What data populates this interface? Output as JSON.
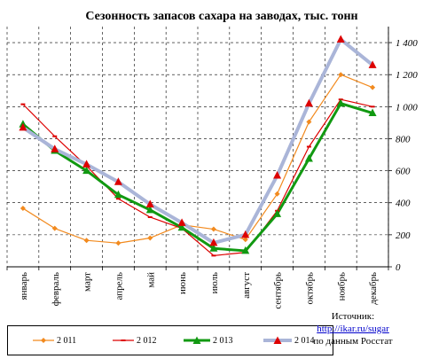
{
  "chart_data": {
    "type": "line",
    "title": "Сезонность  запасов сахара на заводах, тыс. тонн",
    "categories": [
      "январь",
      "февраль",
      "март",
      "апрель",
      "май",
      "июнь",
      "июль",
      "август",
      "сентябрь",
      "октябрь",
      "ноябрь",
      "декабрь"
    ],
    "ylim": [
      0,
      1500
    ],
    "yticks": [
      0,
      200,
      400,
      600,
      800,
      1000,
      1200,
      1400
    ],
    "ytick_labels": [
      "0",
      "200",
      "400",
      "600",
      "800",
      "1 000",
      "1 200",
      "1 400"
    ],
    "y_axis_side": "right",
    "grid": true,
    "legend_position": "bottom",
    "series": [
      {
        "name": "2 011",
        "color": "#f28a1e",
        "marker": "diamond",
        "values": [
          365,
          240,
          165,
          148,
          180,
          262,
          235,
          170,
          455,
          905,
          1200,
          1120
        ]
      },
      {
        "name": "2 012",
        "color": "#dd0000",
        "marker": "dash",
        "values": [
          1015,
          815,
          630,
          425,
          310,
          240,
          70,
          90,
          350,
          750,
          1045,
          1000
        ]
      },
      {
        "name": "2 013",
        "color": "#119911",
        "marker": "triangle",
        "values": [
          890,
          725,
          600,
          450,
          355,
          245,
          115,
          100,
          330,
          675,
          1020,
          960
        ]
      },
      {
        "name": "2 014",
        "color": "#aab5d8",
        "marker": "triangle-red",
        "values": [
          870,
          735,
          640,
          530,
          390,
          275,
          150,
          200,
          570,
          1020,
          1420,
          1260
        ]
      }
    ]
  },
  "source": {
    "line1": "Источник:",
    "link": "http://ikar.ru/sugar",
    "line3": "по данным Росстат"
  }
}
